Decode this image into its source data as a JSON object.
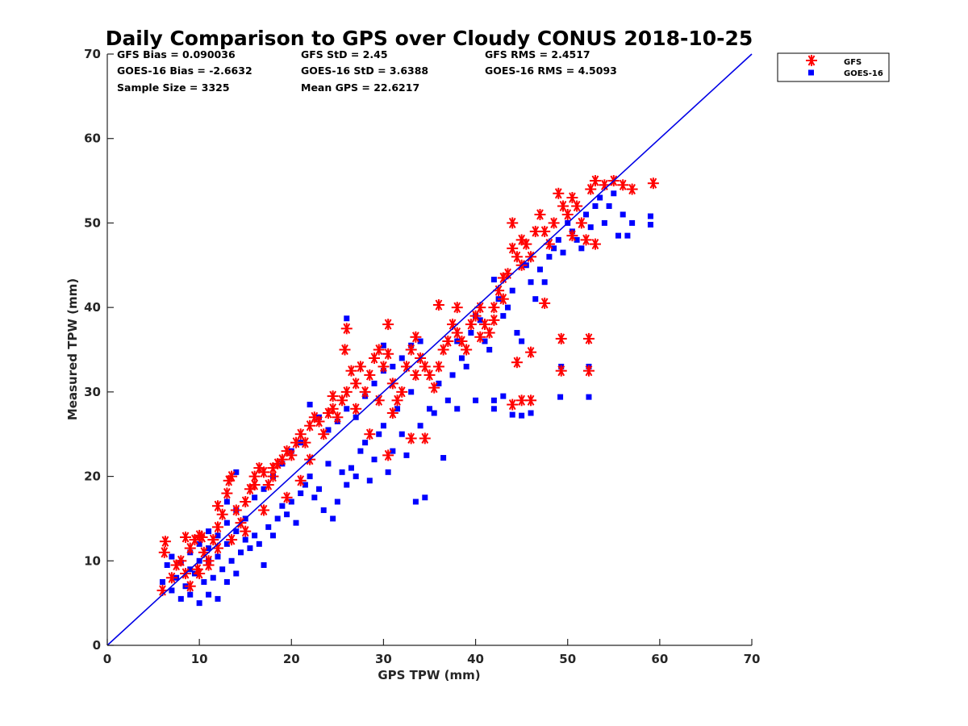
{
  "chart_data": {
    "type": "scatter",
    "title": "Daily Comparison to GPS over Cloudy CONUS 2018-10-25",
    "xlabel": "GPS TPW (mm)",
    "ylabel": "Measured TPW (mm)",
    "xlim": [
      0,
      70
    ],
    "ylim": [
      0,
      70
    ],
    "xticks": [
      0,
      10,
      20,
      30,
      40,
      50,
      60,
      70
    ],
    "yticks": [
      0,
      10,
      20,
      30,
      40,
      50,
      60,
      70
    ],
    "grid": false,
    "legend_position": "outside-top-right",
    "reference_line": {
      "from": [
        0,
        0
      ],
      "to": [
        70,
        70
      ],
      "color": "#0000e6"
    },
    "stats": [
      {
        "text": "GFS Bias = 0.090036"
      },
      {
        "text": "GFS StD = 2.45"
      },
      {
        "text": "GFS RMS = 2.4517"
      },
      {
        "text": "GOES-16 Bias = -2.6632"
      },
      {
        "text": "GOES-16 StD = 3.6388"
      },
      {
        "text": "GOES-16 RMS = 4.5093"
      },
      {
        "text": "Sample Size = 3325"
      },
      {
        "text": "Mean GPS = 22.6217"
      }
    ],
    "series": [
      {
        "name": "GFS",
        "marker": "asterisk",
        "color": "#ff0000",
        "points": [
          [
            6,
            6.5
          ],
          [
            6.2,
            11
          ],
          [
            6.3,
            12.3
          ],
          [
            7,
            8
          ],
          [
            7.5,
            9.5
          ],
          [
            8,
            10
          ],
          [
            8.5,
            12.8
          ],
          [
            9,
            11.5
          ],
          [
            9.5,
            12.5
          ],
          [
            10,
            13
          ],
          [
            10.3,
            12.8
          ],
          [
            10.5,
            11
          ],
          [
            9,
            7
          ],
          [
            8.5,
            8.5
          ],
          [
            9.8,
            9
          ],
          [
            11,
            10
          ],
          [
            11.5,
            12.5
          ],
          [
            12,
            14
          ],
          [
            12.5,
            15.5
          ],
          [
            12,
            16.5
          ],
          [
            13,
            18
          ],
          [
            13.2,
            19.5
          ],
          [
            13.5,
            20
          ],
          [
            14,
            16
          ],
          [
            14.5,
            14.5
          ],
          [
            15,
            17
          ],
          [
            15.5,
            18.5
          ],
          [
            16,
            20
          ],
          [
            16.5,
            21
          ],
          [
            17,
            20.5
          ],
          [
            17.5,
            19
          ],
          [
            18,
            20
          ],
          [
            18.5,
            21.5
          ],
          [
            19,
            22
          ],
          [
            19.5,
            23
          ],
          [
            20,
            22.5
          ],
          [
            20.5,
            24
          ],
          [
            21,
            25
          ],
          [
            21.5,
            24
          ],
          [
            22,
            26
          ],
          [
            22.5,
            27
          ],
          [
            23,
            26.5
          ],
          [
            23.5,
            25
          ],
          [
            24,
            27.5
          ],
          [
            24.5,
            28
          ],
          [
            25,
            27
          ],
          [
            25.5,
            29
          ],
          [
            26,
            30
          ],
          [
            26.5,
            32.5
          ],
          [
            27,
            31
          ],
          [
            27.5,
            33
          ],
          [
            28,
            30
          ],
          [
            28.5,
            32
          ],
          [
            29,
            34
          ],
          [
            29.5,
            35
          ],
          [
            30,
            33
          ],
          [
            30.5,
            34.5
          ],
          [
            31,
            31
          ],
          [
            31.5,
            29
          ],
          [
            32,
            30
          ],
          [
            32.5,
            33
          ],
          [
            33,
            35
          ],
          [
            33.5,
            36.5
          ],
          [
            34,
            34
          ],
          [
            34.5,
            33
          ],
          [
            35,
            32
          ],
          [
            35.5,
            30.5
          ],
          [
            36,
            33
          ],
          [
            36.5,
            35
          ],
          [
            37,
            36
          ],
          [
            37.5,
            38
          ],
          [
            38,
            37
          ],
          [
            38.5,
            36
          ],
          [
            39,
            35
          ],
          [
            39.5,
            38
          ],
          [
            40,
            39
          ],
          [
            40.5,
            40
          ],
          [
            41,
            38
          ],
          [
            41.5,
            37
          ],
          [
            42,
            40
          ],
          [
            42.5,
            42
          ],
          [
            43,
            41
          ],
          [
            43.5,
            44
          ],
          [
            44,
            47
          ],
          [
            44.5,
            46
          ],
          [
            45,
            45
          ],
          [
            45.5,
            47.5
          ],
          [
            46,
            46
          ],
          [
            46.5,
            49
          ],
          [
            47,
            51
          ],
          [
            47.5,
            49
          ],
          [
            48,
            47.5
          ],
          [
            48.5,
            50
          ],
          [
            49,
            53.5
          ],
          [
            49.5,
            52
          ],
          [
            50,
            51
          ],
          [
            50.5,
            53
          ],
          [
            51,
            52
          ],
          [
            51.5,
            50
          ],
          [
            52,
            48
          ],
          [
            52.5,
            54
          ],
          [
            53,
            55
          ],
          [
            54,
            54.5
          ],
          [
            55,
            55
          ],
          [
            56,
            54.5
          ],
          [
            57,
            54
          ],
          [
            59.3,
            54.7
          ],
          [
            49.3,
            36.3
          ],
          [
            52.3,
            36.3
          ],
          [
            49.3,
            32.5
          ],
          [
            52.3,
            32.5
          ],
          [
            44,
            28.5
          ],
          [
            45,
            29
          ],
          [
            46,
            29
          ],
          [
            44.5,
            33.5
          ],
          [
            46,
            34.7
          ],
          [
            30.5,
            38
          ],
          [
            26,
            37.5
          ],
          [
            25.8,
            35
          ],
          [
            30.5,
            22.5
          ],
          [
            33,
            24.5
          ],
          [
            34.5,
            24.5
          ],
          [
            36,
            40.3
          ],
          [
            38,
            40
          ],
          [
            44,
            50
          ],
          [
            45,
            48
          ],
          [
            28.5,
            25
          ],
          [
            22,
            22
          ],
          [
            21,
            19.5
          ],
          [
            19.5,
            17.5
          ],
          [
            17,
            16
          ],
          [
            15,
            13.5
          ],
          [
            13.5,
            12.5
          ],
          [
            12,
            11.5
          ],
          [
            11,
            9.5
          ],
          [
            10,
            8.5
          ],
          [
            16,
            19
          ],
          [
            18,
            21
          ],
          [
            24.5,
            29.5
          ],
          [
            27,
            28
          ],
          [
            29.5,
            29
          ],
          [
            31,
            27.5
          ],
          [
            33.5,
            32
          ],
          [
            40.5,
            36.5
          ],
          [
            42,
            38.5
          ],
          [
            43,
            43.5
          ],
          [
            47.5,
            40.5
          ],
          [
            50.5,
            48.5
          ],
          [
            53,
            47.5
          ]
        ]
      },
      {
        "name": "GOES-16",
        "marker": "square",
        "color": "#0000ff",
        "points": [
          [
            6,
            7.5
          ],
          [
            6.5,
            9.5
          ],
          [
            7,
            6.5
          ],
          [
            7.5,
            8
          ],
          [
            8,
            5.5
          ],
          [
            8.5,
            7
          ],
          [
            9,
            6
          ],
          [
            9.5,
            8.5
          ],
          [
            10,
            5
          ],
          [
            10.5,
            7.5
          ],
          [
            11,
            6
          ],
          [
            11.5,
            8
          ],
          [
            12,
            5.5
          ],
          [
            12.5,
            9
          ],
          [
            13,
            7.5
          ],
          [
            13.5,
            10
          ],
          [
            14,
            8.5
          ],
          [
            14.5,
            11
          ],
          [
            15,
            12.5
          ],
          [
            15.5,
            11.5
          ],
          [
            16,
            13
          ],
          [
            16.5,
            12
          ],
          [
            17,
            9.5
          ],
          [
            17.5,
            14
          ],
          [
            18,
            13
          ],
          [
            18.5,
            15
          ],
          [
            19,
            16.5
          ],
          [
            19.5,
            15.5
          ],
          [
            20,
            17
          ],
          [
            20.5,
            14.5
          ],
          [
            21,
            18
          ],
          [
            21.5,
            19
          ],
          [
            22,
            20
          ],
          [
            22.5,
            17.5
          ],
          [
            23,
            18.5
          ],
          [
            23.5,
            16
          ],
          [
            24,
            21.5
          ],
          [
            24.5,
            15
          ],
          [
            25,
            17
          ],
          [
            25.5,
            20.5
          ],
          [
            26,
            19
          ],
          [
            26.5,
            21
          ],
          [
            27,
            20
          ],
          [
            27.5,
            23
          ],
          [
            28,
            24
          ],
          [
            28.5,
            19.5
          ],
          [
            29,
            22
          ],
          [
            29.5,
            25
          ],
          [
            30,
            26
          ],
          [
            30.5,
            20.5
          ],
          [
            31,
            23
          ],
          [
            31.5,
            28
          ],
          [
            32,
            25
          ],
          [
            32.5,
            22.5
          ],
          [
            33,
            30
          ],
          [
            33.5,
            17
          ],
          [
            34,
            26
          ],
          [
            34.5,
            17.5
          ],
          [
            35,
            28
          ],
          [
            35.5,
            27.5
          ],
          [
            36,
            31
          ],
          [
            36.5,
            22.2
          ],
          [
            37,
            29
          ],
          [
            37.5,
            32
          ],
          [
            38,
            28
          ],
          [
            38.5,
            34
          ],
          [
            39,
            33
          ],
          [
            39.5,
            37
          ],
          [
            40,
            39
          ],
          [
            40.5,
            38.5
          ],
          [
            41,
            36
          ],
          [
            41.5,
            35
          ],
          [
            42,
            43.3
          ],
          [
            42.5,
            41
          ],
          [
            43,
            39
          ],
          [
            43.5,
            40
          ],
          [
            44,
            42
          ],
          [
            44.5,
            37
          ],
          [
            45,
            36
          ],
          [
            45.5,
            45
          ],
          [
            46,
            43
          ],
          [
            46.5,
            41
          ],
          [
            47,
            44.5
          ],
          [
            47.5,
            43
          ],
          [
            48,
            46
          ],
          [
            48.5,
            47
          ],
          [
            49,
            48
          ],
          [
            49.5,
            46.5
          ],
          [
            50,
            50
          ],
          [
            50.5,
            49
          ],
          [
            51,
            48
          ],
          [
            51.5,
            47
          ],
          [
            52,
            51
          ],
          [
            52.5,
            49.5
          ],
          [
            53,
            52
          ],
          [
            53.5,
            53
          ],
          [
            54,
            50
          ],
          [
            54.5,
            52
          ],
          [
            55,
            53.5
          ],
          [
            55.5,
            48.5
          ],
          [
            56,
            51
          ],
          [
            56.5,
            48.5
          ],
          [
            57,
            50
          ],
          [
            59,
            49.8
          ],
          [
            59,
            50.8
          ],
          [
            43,
            29.5
          ],
          [
            44,
            27.3
          ],
          [
            45,
            27.2
          ],
          [
            46,
            27.5
          ],
          [
            49.2,
            29.4
          ],
          [
            52.3,
            29.4
          ],
          [
            49.3,
            33
          ],
          [
            52.3,
            33
          ],
          [
            26,
            38.7
          ],
          [
            30,
            35.5
          ],
          [
            38,
            36
          ],
          [
            42,
            29
          ],
          [
            42,
            28
          ],
          [
            40,
            29
          ],
          [
            10,
            12
          ],
          [
            11,
            10
          ],
          [
            12,
            13
          ],
          [
            13,
            14.5
          ],
          [
            14,
            16
          ],
          [
            15,
            15
          ],
          [
            16,
            17.5
          ],
          [
            17,
            18.5
          ],
          [
            18,
            20
          ],
          [
            19,
            21.5
          ],
          [
            20,
            23
          ],
          [
            21,
            24
          ],
          [
            22,
            28.5
          ],
          [
            23,
            27
          ],
          [
            24,
            25.5
          ],
          [
            25,
            26.5
          ],
          [
            26,
            28
          ],
          [
            27,
            27
          ],
          [
            28,
            29.5
          ],
          [
            29,
            31
          ],
          [
            30,
            32.5
          ],
          [
            31,
            33
          ],
          [
            32,
            34
          ],
          [
            33,
            35.5
          ],
          [
            34,
            36
          ],
          [
            9,
            9
          ],
          [
            9,
            11
          ],
          [
            10,
            10
          ],
          [
            11,
            11.5
          ],
          [
            12,
            10.5
          ],
          [
            13,
            12
          ],
          [
            14,
            13.5
          ],
          [
            8,
            9.8
          ],
          [
            7,
            10.5
          ],
          [
            11,
            13.5
          ],
          [
            13,
            17
          ],
          [
            14,
            20.5
          ]
        ]
      }
    ]
  }
}
